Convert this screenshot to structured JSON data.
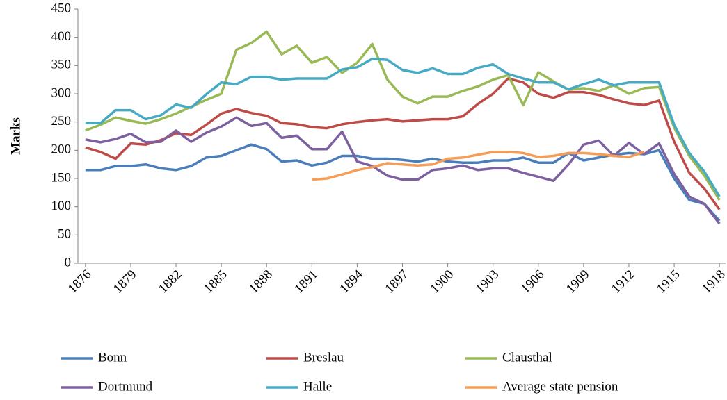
{
  "chart_data": {
    "type": "line",
    "y_label": "Marks",
    "x": [
      1876,
      1877,
      1878,
      1879,
      1880,
      1881,
      1882,
      1883,
      1884,
      1885,
      1886,
      1887,
      1888,
      1889,
      1890,
      1891,
      1892,
      1893,
      1894,
      1895,
      1896,
      1897,
      1898,
      1899,
      1900,
      1901,
      1902,
      1903,
      1904,
      1905,
      1906,
      1907,
      1908,
      1909,
      1910,
      1911,
      1912,
      1913,
      1914,
      1915,
      1916,
      1917,
      1918
    ],
    "xlim": [
      1875.5,
      1918.5
    ],
    "xticks": [
      1876,
      1879,
      1882,
      1885,
      1888,
      1891,
      1894,
      1897,
      1900,
      1903,
      1906,
      1909,
      1912,
      1915,
      1918
    ],
    "ylim": [
      0,
      450
    ],
    "yticks": [
      0,
      50,
      100,
      150,
      200,
      250,
      300,
      350,
      400,
      450
    ],
    "series": [
      {
        "name": "Bonn",
        "color": "#4a7ebb",
        "values": [
          165,
          165,
          172,
          172,
          175,
          168,
          165,
          172,
          187,
          190,
          200,
          210,
          202,
          180,
          182,
          173,
          178,
          190,
          190,
          185,
          185,
          183,
          180,
          185,
          180,
          178,
          178,
          182,
          182,
          187,
          178,
          178,
          195,
          182,
          187,
          192,
          195,
          193,
          200,
          150,
          112,
          105,
          75
        ]
      },
      {
        "name": "Breslau",
        "color": "#be4b48",
        "values": [
          205,
          197,
          185,
          212,
          210,
          218,
          230,
          227,
          245,
          265,
          273,
          266,
          261,
          248,
          246,
          241,
          239,
          246,
          250,
          253,
          255,
          251,
          253,
          255,
          255,
          260,
          282,
          300,
          327,
          320,
          300,
          293,
          303,
          303,
          298,
          290,
          283,
          280,
          288,
          215,
          160,
          132,
          95
        ]
      },
      {
        "name": "Clausthal",
        "color": "#98b954",
        "values": [
          235,
          245,
          258,
          252,
          247,
          255,
          265,
          277,
          289,
          300,
          378,
          390,
          410,
          370,
          385,
          355,
          365,
          337,
          355,
          388,
          325,
          295,
          283,
          295,
          295,
          305,
          313,
          325,
          333,
          280,
          338,
          322,
          307,
          310,
          305,
          315,
          300,
          310,
          312,
          240,
          190,
          155,
          112
        ]
      },
      {
        "name": "Dortmund",
        "color": "#7d60a0",
        "values": [
          219,
          214,
          220,
          229,
          214,
          215,
          235,
          215,
          231,
          242,
          258,
          243,
          248,
          222,
          226,
          202,
          202,
          233,
          180,
          172,
          155,
          148,
          148,
          165,
          168,
          173,
          165,
          168,
          168,
          160,
          153,
          146,
          175,
          210,
          217,
          190,
          213,
          193,
          212,
          158,
          118,
          105,
          70
        ]
      },
      {
        "name": "Halle",
        "color": "#46aac5",
        "values": [
          248,
          248,
          271,
          271,
          255,
          262,
          281,
          275,
          299,
          320,
          317,
          330,
          330,
          325,
          327,
          327,
          327,
          343,
          347,
          362,
          360,
          342,
          337,
          345,
          335,
          335,
          346,
          352,
          335,
          327,
          320,
          320,
          308,
          317,
          325,
          315,
          320,
          320,
          320,
          245,
          195,
          162,
          118
        ]
      },
      {
        "name": "Average state pension",
        "color": "#f59d56",
        "values": [
          null,
          null,
          null,
          null,
          null,
          null,
          null,
          null,
          null,
          null,
          null,
          null,
          null,
          null,
          null,
          148,
          150,
          157,
          165,
          170,
          177,
          175,
          173,
          175,
          185,
          187,
          192,
          197,
          197,
          195,
          188,
          190,
          195,
          195,
          193,
          190,
          188,
          197,
          null,
          null,
          null,
          null,
          null
        ]
      }
    ]
  }
}
